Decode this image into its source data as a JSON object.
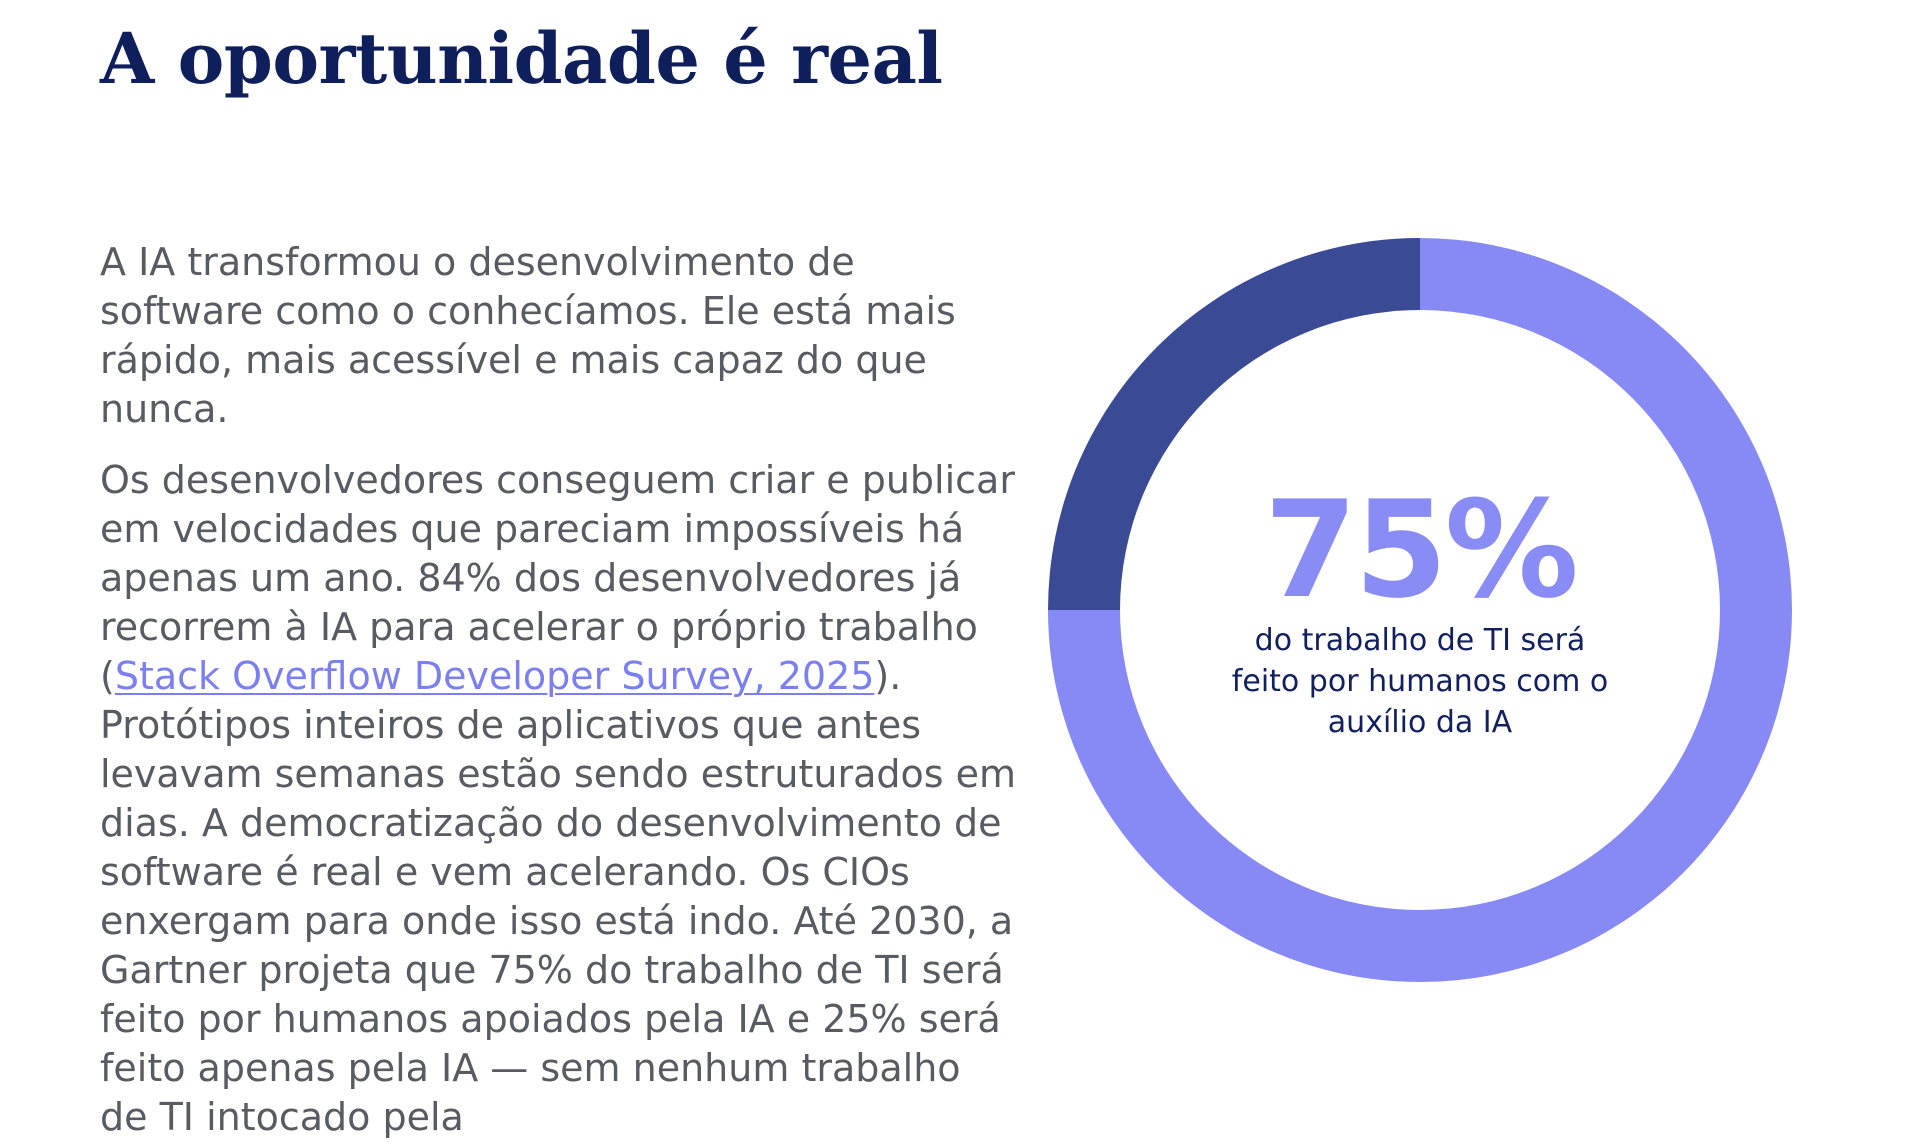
{
  "header": {
    "title": "A oportunidade é real"
  },
  "body": {
    "paragraph1": "A IA transformou o desenvolvimento de software como o conhecíamos. Ele está mais rápido, mais acessível e mais capaz do que nunca.",
    "paragraph2_before_link": "Os desenvolvedores conseguem criar e publicar em velocidades que pareciam impossíveis há apenas um ano. 84% dos desenvolvedores já recorrem à IA para acelerar o próprio trabalho (",
    "paragraph2_link": "Stack Overflow Developer Survey, 2025",
    "paragraph2_after_link": "). Protótipos inteiros de aplicativos que antes levavam semanas estão sendo estruturados em dias. A democratização do desenvolvimento de software é real e vem acelerando. Os CIOs enxergam para onde isso está indo. Até 2030, a Gartner projeta que 75% do trabalho de TI será feito por humanos apoiados pela IA e 25% será feito apenas pela IA — sem nenhum trabalho de TI intocado pela"
  },
  "chart_data": {
    "type": "pie",
    "style": "donut",
    "values": [
      75,
      25
    ],
    "colors": [
      "#878af5",
      "#3a4a94"
    ],
    "center_value": "75%",
    "center_caption": "do trabalho de TI será feito por humanos com o auxílio da IA"
  }
}
